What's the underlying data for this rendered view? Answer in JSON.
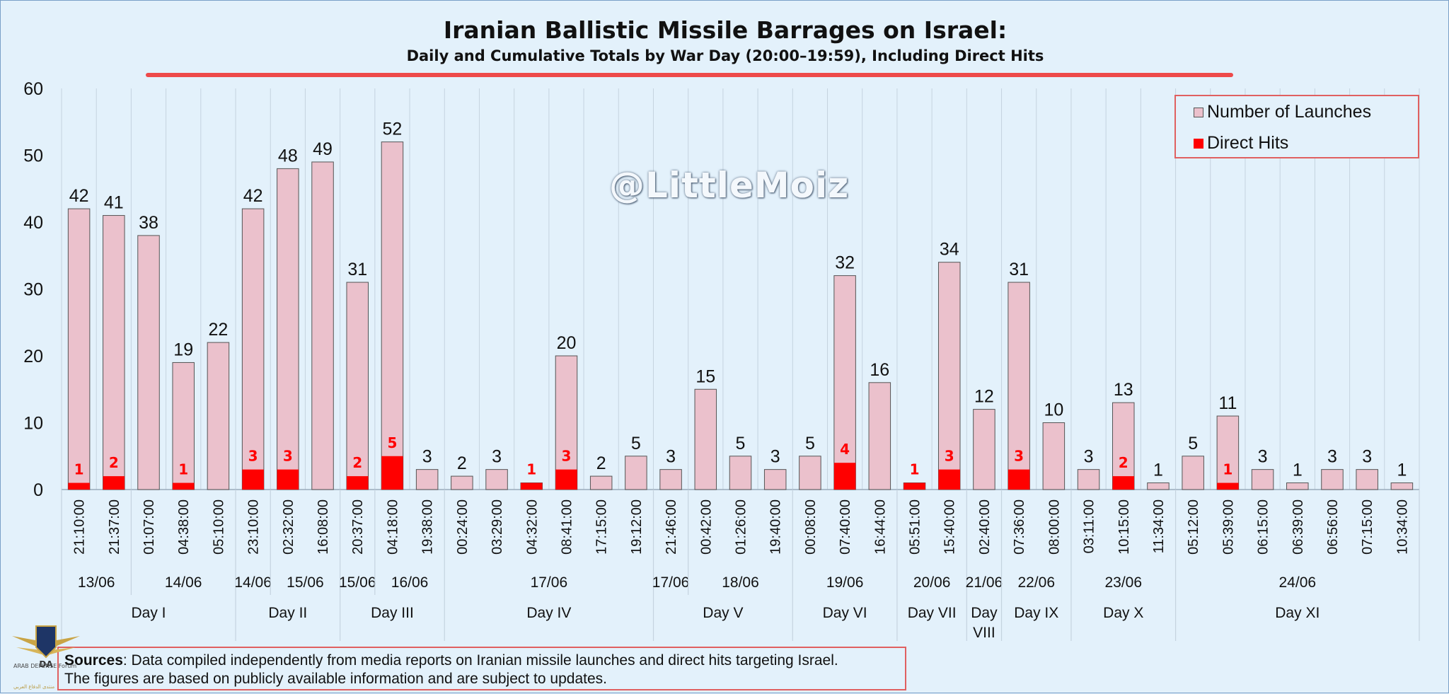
{
  "title": "Iranian Ballistic Missile Barrages on Israel:",
  "subtitle": "Daily and Cumulative Totals by War Day (20:00–19:59), Including Direct Hits",
  "watermark": "@LittleMoiz",
  "legend": {
    "launches": "Number of Launches",
    "hits": "Direct Hits"
  },
  "sources": {
    "label": "Sources",
    "text": ": Data compiled independently from media reports on Iranian missile launches and direct hits targeting Israel.",
    "text2": "The figures are based on publicly available information and are subject to updates."
  },
  "logo": {
    "text": "ARAB DEFENSE Forum",
    "mark": "DA",
    "sub": "منتدى الدفاع العربي"
  },
  "colors": {
    "background": "#e3f1fb",
    "launches": "#ebc1cc",
    "hits": "#ff0000",
    "accent": "#ee4a4a",
    "grid": "#c5d3df"
  },
  "chart_data": {
    "type": "bar",
    "ylim": [
      0,
      60
    ],
    "yticks": [
      0,
      10,
      20,
      30,
      40,
      50,
      60
    ],
    "categories": [
      "21:10:00",
      "21:37:00",
      "01:07:00",
      "04:38:00",
      "05:10:00",
      "23:10:00",
      "02:32:00",
      "16:08:00",
      "20:37:00",
      "04:18:00",
      "19:38:00",
      "00:24:00",
      "03:29:00",
      "04:32:00",
      "08:41:00",
      "17:15:00",
      "19:12:00",
      "21:46:00",
      "00:42:00",
      "01:26:00",
      "19:40:00",
      "00:08:00",
      "07:40:00",
      "16:44:00",
      "05:51:00",
      "15:40:00",
      "02:40:00",
      "07:36:00",
      "08:00:00",
      "03:11:00",
      "10:15:00",
      "11:34:00",
      "05:12:00",
      "05:39:00",
      "06:15:00",
      "06:39:00",
      "06:56:00",
      "07:15:00",
      "10:34:00"
    ],
    "series": [
      {
        "name": "Number of Launches",
        "values": [
          42,
          41,
          38,
          19,
          22,
          42,
          48,
          49,
          31,
          52,
          3,
          2,
          3,
          1,
          20,
          2,
          5,
          3,
          15,
          5,
          3,
          5,
          32,
          16,
          1,
          34,
          12,
          31,
          10,
          3,
          13,
          1,
          5,
          11,
          3,
          1,
          3,
          3,
          1
        ]
      },
      {
        "name": "Direct Hits",
        "values": [
          1,
          2,
          0,
          1,
          0,
          3,
          3,
          0,
          2,
          5,
          0,
          0,
          0,
          1,
          3,
          0,
          0,
          0,
          0,
          0,
          0,
          0,
          4,
          0,
          1,
          3,
          0,
          3,
          0,
          0,
          2,
          0,
          0,
          1,
          0,
          0,
          0,
          0,
          0
        ]
      }
    ],
    "launch_labels": [
      "42",
      "41",
      "38",
      "19",
      "22",
      "42",
      "48",
      "49",
      "31",
      "52",
      "3",
      "2",
      "3",
      "",
      "20",
      "2",
      "5",
      "3",
      "15",
      "5",
      "3",
      "5",
      "32",
      "16",
      "",
      "34",
      "12",
      "31",
      "10",
      "3",
      "13",
      "1",
      "5",
      "11",
      "3",
      "1",
      "3",
      "3",
      "1"
    ],
    "dates": [
      {
        "label": "13/06",
        "start": 0,
        "end": 1
      },
      {
        "label": "14/06",
        "start": 2,
        "end": 4
      },
      {
        "label": "14/06",
        "start": 5,
        "end": 5
      },
      {
        "label": "15/06",
        "start": 6,
        "end": 7
      },
      {
        "label": "15/06",
        "start": 8,
        "end": 8
      },
      {
        "label": "16/06",
        "start": 9,
        "end": 10
      },
      {
        "label": "17/06",
        "start": 11,
        "end": 16
      },
      {
        "label": "17/06",
        "start": 17,
        "end": 17
      },
      {
        "label": "18/06",
        "start": 18,
        "end": 20
      },
      {
        "label": "19/06",
        "start": 21,
        "end": 23
      },
      {
        "label": "20/06",
        "start": 24,
        "end": 25
      },
      {
        "label": "21/06",
        "start": 26,
        "end": 26
      },
      {
        "label": "22/06",
        "start": 27,
        "end": 28
      },
      {
        "label": "23/06",
        "start": 29,
        "end": 31
      },
      {
        "label": "24/06",
        "start": 32,
        "end": 38
      }
    ],
    "days": [
      {
        "label": "Day I",
        "start": 0,
        "end": 4
      },
      {
        "label": "Day II",
        "start": 5,
        "end": 7
      },
      {
        "label": "Day III",
        "start": 8,
        "end": 10
      },
      {
        "label": "Day IV",
        "start": 11,
        "end": 16
      },
      {
        "label": "Day V",
        "start": 17,
        "end": 20
      },
      {
        "label": "Day VI",
        "start": 21,
        "end": 23
      },
      {
        "label": "Day VII",
        "start": 24,
        "end": 25
      },
      {
        "label": "Day VIII",
        "start": 26,
        "end": 26
      },
      {
        "label": "Day IX",
        "start": 27,
        "end": 28
      },
      {
        "label": "Day X",
        "start": 29,
        "end": 31
      },
      {
        "label": "Day XI",
        "start": 32,
        "end": 38
      }
    ],
    "legend_position": "top-right",
    "grid": true
  }
}
